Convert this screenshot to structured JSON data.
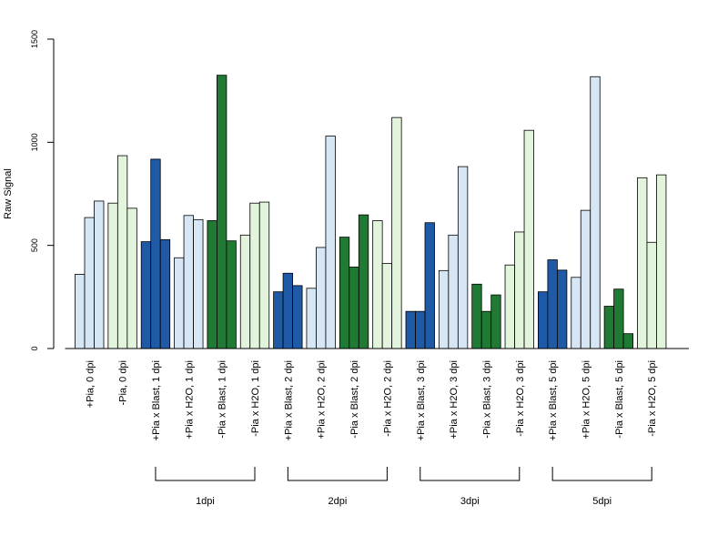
{
  "chart_data": {
    "type": "bar",
    "title": "",
    "xlabel": "",
    "ylabel": "Raw Signal",
    "ylim": [
      0,
      1500
    ],
    "yticks": [
      0,
      500,
      1000,
      1500
    ],
    "grid": false,
    "legend": "none",
    "categories": [
      "+Pia, 0 dpi",
      "-Pia, 0 dpi",
      "+Pia x Blast, 1 dpi",
      "+Pia x H2O, 1 dpi",
      "-Pia x Blast, 1 dpi",
      "-Pia x H2O, 1 dpi",
      "+Pia x Blast, 2 dpi",
      "+Pia x H2O, 2 dpi",
      "-Pia x Blast, 2 dpi",
      "-Pia x H2O, 2 dpi",
      "+Pia x Blast, 3 dpi",
      "+Pia x H2O, 3 dpi",
      "-Pia x Blast, 3 dpi",
      "-Pia x H2O, 3 dpi",
      "+Pia x Blast, 5 dpi",
      "+Pia x H2O, 5 dpi",
      "-Pia x Blast, 5 dpi",
      "-Pia x H2O, 5 dpi"
    ],
    "category_colors": [
      "#d7e6f5",
      "#e2f5dc",
      "#1f5aa6",
      "#d7e6f5",
      "#217a34",
      "#e2f5dc",
      "#1f5aa6",
      "#d7e6f5",
      "#217a34",
      "#e2f5dc",
      "#1f5aa6",
      "#d7e6f5",
      "#217a34",
      "#e2f5dc",
      "#1f5aa6",
      "#d7e6f5",
      "#217a34",
      "#e2f5dc"
    ],
    "values": [
      [
        360,
        635,
        715
      ],
      [
        705,
        935,
        680
      ],
      [
        518,
        918,
        528
      ],
      [
        440,
        645,
        625
      ],
      [
        620,
        1325,
        522
      ],
      [
        550,
        705,
        710
      ],
      [
        275,
        365,
        305
      ],
      [
        292,
        490,
        1030
      ],
      [
        540,
        395,
        648
      ],
      [
        620,
        412,
        1120
      ],
      [
        180,
        180,
        610
      ],
      [
        378,
        550,
        882
      ],
      [
        312,
        180,
        260
      ],
      [
        405,
        565,
        1058
      ],
      [
        275,
        430,
        380
      ],
      [
        345,
        670,
        1318
      ],
      [
        205,
        288,
        72
      ],
      [
        828,
        515,
        842
      ]
    ],
    "groups": [
      {
        "label": "1dpi",
        "from": 2,
        "to": 5
      },
      {
        "label": "2dpi",
        "from": 6,
        "to": 9
      },
      {
        "label": "3dpi",
        "from": 10,
        "to": 13
      },
      {
        "label": "5dpi",
        "from": 14,
        "to": 17
      }
    ]
  }
}
